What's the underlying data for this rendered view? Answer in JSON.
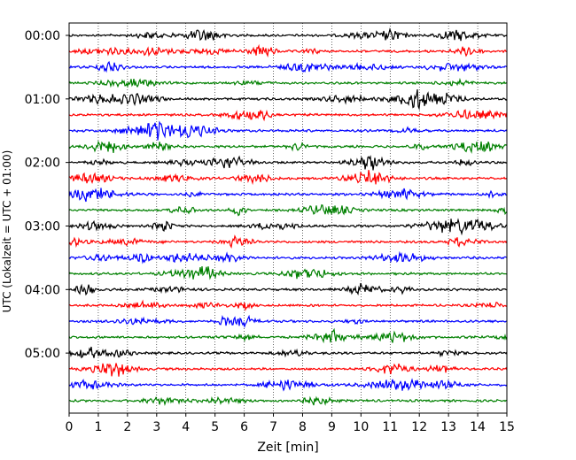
{
  "chart_data": {
    "type": "line",
    "title": "",
    "xlabel": "Zeit  [min]",
    "ylabel": "UTC (Lokalzeit = UTC + 01:00)",
    "x_range": [
      0,
      15
    ],
    "x_ticks": [
      "0",
      "1",
      "2",
      "3",
      "4",
      "5",
      "6",
      "7",
      "8",
      "9",
      "10",
      "11",
      "12",
      "13",
      "14",
      "15"
    ],
    "y_tick_labels": [
      "00:00",
      "01:00",
      "02:00",
      "03:00",
      "04:00",
      "05:00"
    ],
    "trace_interval_min": 15,
    "trace_count": 24,
    "trace_colors": [
      "#000000",
      "#ff0000",
      "#0000ff",
      "#008000"
    ],
    "grid": "vertical dotted",
    "legend": "none"
  }
}
